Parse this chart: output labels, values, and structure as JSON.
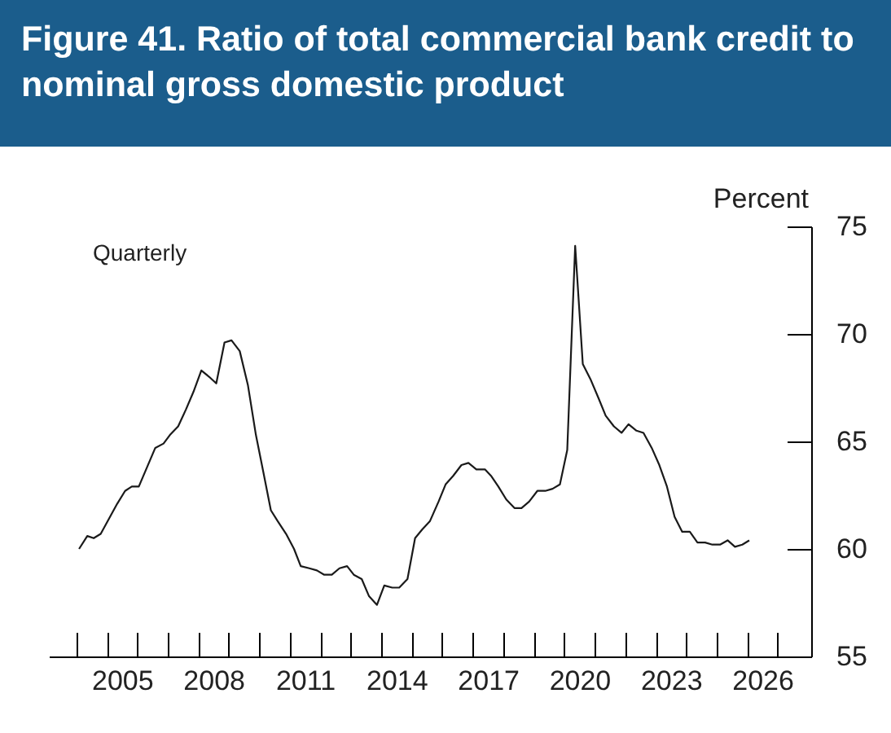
{
  "chart_data": {
    "type": "line",
    "title": "Figure 41. Ratio of total commercial bank credit to nominal gross domestic product",
    "ylabel": "Percent",
    "annotations": [
      "Quarterly"
    ],
    "x": [
      2004.09,
      2004.36,
      2004.57,
      2004.8,
      2005.07,
      2005.34,
      2005.6,
      2005.82,
      2006.05,
      2006.32,
      2006.59,
      2006.86,
      2007.07,
      2007.34,
      2007.6,
      2007.84,
      2008.1,
      2008.36,
      2008.59,
      2008.86,
      2009.09,
      2009.36,
      2009.63,
      2009.89,
      2010.13,
      2010.38,
      2010.6,
      2010.88,
      2011.14,
      2011.36,
      2011.64,
      2011.89,
      2012.13,
      2012.38,
      2012.63,
      2012.88,
      2013.1,
      2013.36,
      2013.6,
      2013.86,
      2014.1,
      2014.36,
      2014.59,
      2014.86,
      2015.11,
      2015.34,
      2015.6,
      2015.88,
      2016.11,
      2016.36,
      2016.63,
      2016.86,
      2017.12,
      2017.4,
      2017.6,
      2017.84,
      2018.1,
      2018.37,
      2018.6,
      2018.85,
      2019.12,
      2019.38,
      2019.62,
      2019.86,
      2020.1,
      2020.36,
      2020.61,
      2020.86,
      2021.13,
      2021.36,
      2021.63,
      2021.88,
      2022.11,
      2022.37,
      2022.6,
      2022.87,
      2023.12,
      2023.37,
      2023.62,
      2023.87,
      2024.12,
      2024.37,
      2024.62,
      2024.86,
      2025.11,
      2025.36,
      2025.6,
      2025.84,
      2026.07
    ],
    "series": [
      {
        "color": "#1a1a1a",
        "values": [
          60.0,
          60.6,
          60.5,
          60.7,
          61.4,
          62.1,
          62.7,
          62.9,
          62.9,
          63.8,
          64.7,
          64.9,
          65.3,
          65.7,
          66.5,
          67.3,
          68.3,
          68.0,
          67.7,
          69.6,
          69.7,
          69.2,
          67.6,
          65.3,
          63.6,
          61.8,
          61.3,
          60.7,
          60.0,
          59.2,
          59.1,
          59.0,
          58.8,
          58.8,
          59.1,
          59.2,
          58.8,
          58.6,
          57.8,
          57.4,
          58.3,
          58.2,
          58.2,
          58.6,
          60.5,
          60.9,
          61.3,
          62.2,
          63.0,
          63.4,
          63.9,
          64.0,
          63.7,
          63.7,
          63.4,
          62.9,
          62.3,
          61.9,
          61.9,
          62.2,
          62.7,
          62.7,
          62.8,
          63.0,
          64.6,
          74.1,
          68.6,
          67.9,
          67.0,
          66.2,
          65.7,
          65.4,
          65.8,
          65.5,
          65.4,
          64.7,
          63.9,
          62.9,
          61.5,
          60.8,
          60.8,
          60.3,
          60.3,
          60.2,
          60.2,
          60.4,
          60.1,
          60.2,
          60.4
        ]
      }
    ],
    "xlim": [
      2003.1,
      2028.1
    ],
    "xticks": [
      {
        "value": 2004,
        "label": null
      },
      {
        "value": 2005,
        "label": null
      },
      {
        "value": 2005.5,
        "label": "2005"
      },
      {
        "value": 2006,
        "label": null
      },
      {
        "value": 2007,
        "label": null
      },
      {
        "value": 2008,
        "label": null
      },
      {
        "value": 2008.5,
        "label": "2008"
      },
      {
        "value": 2009,
        "label": null
      },
      {
        "value": 2010,
        "label": null
      },
      {
        "value": 2011,
        "label": null
      },
      {
        "value": 2011.5,
        "label": "2011"
      },
      {
        "value": 2012,
        "label": null
      },
      {
        "value": 2013,
        "label": null
      },
      {
        "value": 2014,
        "label": null
      },
      {
        "value": 2014.5,
        "label": "2014"
      },
      {
        "value": 2015,
        "label": null
      },
      {
        "value": 2016,
        "label": null
      },
      {
        "value": 2017,
        "label": null
      },
      {
        "value": 2017.5,
        "label": "2017"
      },
      {
        "value": 2018,
        "label": null
      },
      {
        "value": 2019,
        "label": null
      },
      {
        "value": 2020,
        "label": null
      },
      {
        "value": 2020.5,
        "label": "2020"
      },
      {
        "value": 2021,
        "label": null
      },
      {
        "value": 2022,
        "label": null
      },
      {
        "value": 2023,
        "label": null
      },
      {
        "value": 2023.5,
        "label": "2023"
      },
      {
        "value": 2024,
        "label": null
      },
      {
        "value": 2025,
        "label": null
      },
      {
        "value": 2026,
        "label": null
      },
      {
        "value": 2026.5,
        "label": "2026"
      },
      {
        "value": 2027,
        "label": null
      }
    ],
    "ylim": [
      55,
      75
    ],
    "yticks": [
      55,
      60,
      65,
      70,
      75
    ]
  }
}
